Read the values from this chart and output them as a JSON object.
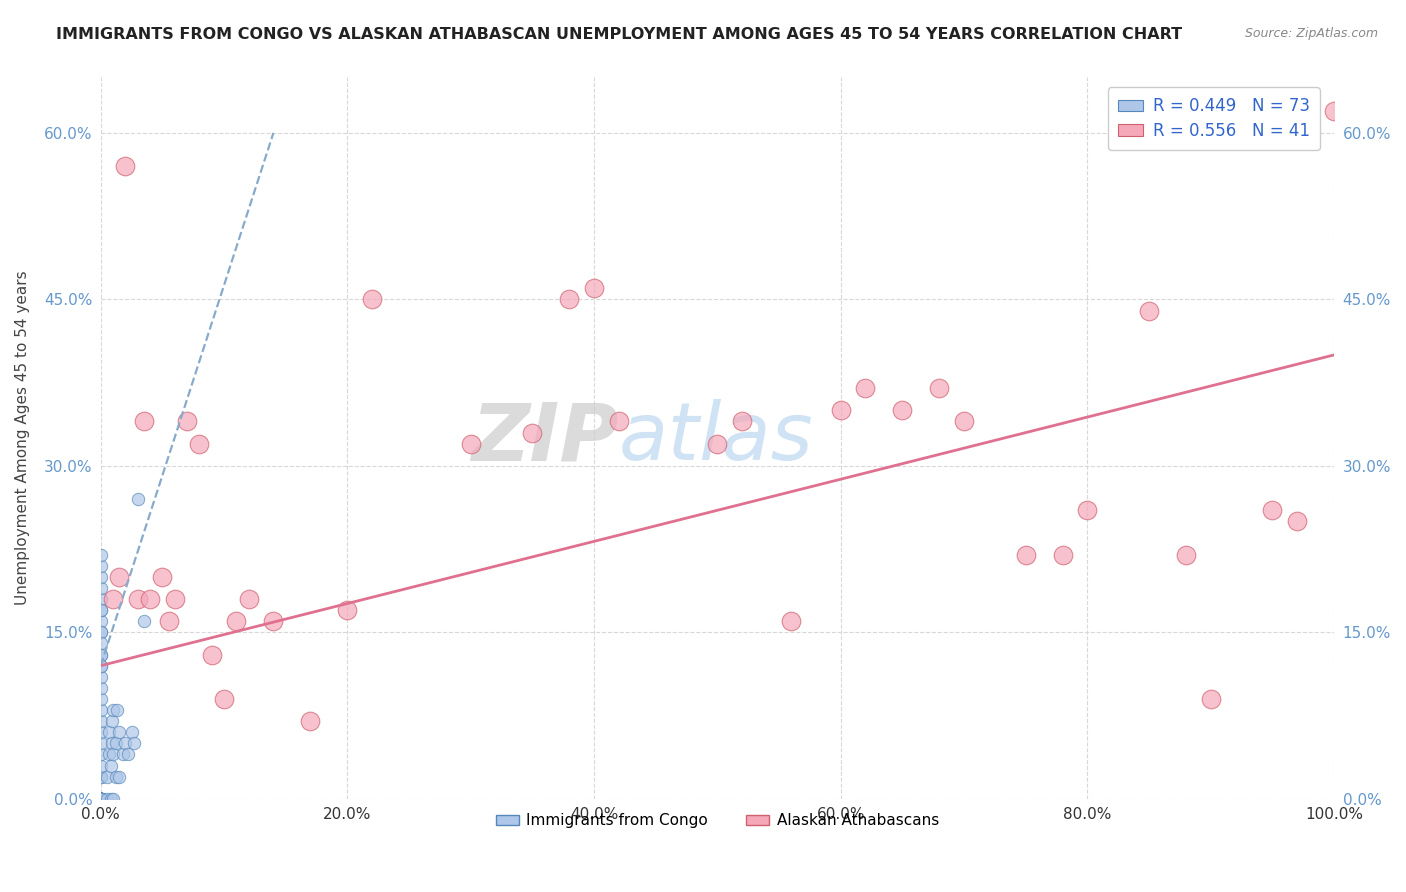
{
  "title": "IMMIGRANTS FROM CONGO VS ALASKAN ATHABASCAN UNEMPLOYMENT AMONG AGES 45 TO 54 YEARS CORRELATION CHART",
  "source": "Source: ZipAtlas.com",
  "ylabel": "Unemployment Among Ages 45 to 54 years",
  "xlim": [
    0.0,
    1.0
  ],
  "ylim": [
    0.0,
    0.65
  ],
  "xtick_labels": [
    "0.0%",
    "20.0%",
    "40.0%",
    "60.0%",
    "80.0%",
    "100.0%"
  ],
  "xtick_vals": [
    0.0,
    0.2,
    0.4,
    0.6,
    0.8,
    1.0
  ],
  "ytick_labels": [
    "0.0%",
    "15.0%",
    "30.0%",
    "45.0%",
    "60.0%"
  ],
  "ytick_vals": [
    0.0,
    0.15,
    0.3,
    0.45,
    0.6
  ],
  "legend_r_congo": "R = 0.449",
  "legend_n_congo": "N = 73",
  "legend_r_athabascan": "R = 0.556",
  "legend_n_athabascan": "N = 41",
  "congo_color": "#aec6e8",
  "congo_edge": "#5588bb",
  "athabascan_color": "#f4a8b8",
  "athabascan_edge": "#d06070",
  "congo_line_color": "#88aacc",
  "athabascan_line_color": "#e07090",
  "watermark_zip": "ZIP",
  "watermark_atlas": "atlas",
  "background_color": "#ffffff",
  "grid_color": "#d8d8d8",
  "congo_x": [
    0.0,
    0.0,
    0.0,
    0.0,
    0.0,
    0.0,
    0.0,
    0.0,
    0.0,
    0.0,
    0.0,
    0.0,
    0.0,
    0.0,
    0.0,
    0.0,
    0.0,
    0.0,
    0.0,
    0.0,
    0.0,
    0.0,
    0.0,
    0.0,
    0.0,
    0.0,
    0.0,
    0.0,
    0.0,
    0.0,
    0.0,
    0.0,
    0.0,
    0.0,
    0.0,
    0.0,
    0.0,
    0.0,
    0.0,
    0.0,
    0.0,
    0.0,
    0.0,
    0.0,
    0.0,
    0.0,
    0.0,
    0.0,
    0.0,
    0.0,
    0.005,
    0.005,
    0.007,
    0.007,
    0.008,
    0.008,
    0.009,
    0.009,
    0.01,
    0.01,
    0.01,
    0.012,
    0.012,
    0.013,
    0.015,
    0.015,
    0.018,
    0.02,
    0.022,
    0.025,
    0.027,
    0.03,
    0.035
  ],
  "congo_y": [
    0.0,
    0.0,
    0.0,
    0.0,
    0.0,
    0.0,
    0.0,
    0.0,
    0.0,
    0.0,
    0.0,
    0.0,
    0.0,
    0.0,
    0.0,
    0.0,
    0.0,
    0.0,
    0.0,
    0.0,
    0.0,
    0.0,
    0.0,
    0.0,
    0.02,
    0.02,
    0.03,
    0.04,
    0.05,
    0.06,
    0.07,
    0.08,
    0.09,
    0.1,
    0.11,
    0.12,
    0.13,
    0.15,
    0.16,
    0.17,
    0.18,
    0.19,
    0.2,
    0.21,
    0.22,
    0.17,
    0.15,
    0.14,
    0.13,
    0.12,
    0.0,
    0.02,
    0.04,
    0.06,
    0.0,
    0.03,
    0.05,
    0.07,
    0.0,
    0.04,
    0.08,
    0.02,
    0.05,
    0.08,
    0.02,
    0.06,
    0.04,
    0.05,
    0.04,
    0.06,
    0.05,
    0.27,
    0.16
  ],
  "athabascan_x": [
    0.01,
    0.015,
    0.02,
    0.03,
    0.035,
    0.04,
    0.05,
    0.055,
    0.06,
    0.07,
    0.08,
    0.09,
    0.1,
    0.11,
    0.12,
    0.14,
    0.17,
    0.2,
    0.22,
    0.3,
    0.35,
    0.38,
    0.4,
    0.42,
    0.5,
    0.52,
    0.56,
    0.6,
    0.62,
    0.65,
    0.68,
    0.7,
    0.75,
    0.78,
    0.8,
    0.85,
    0.88,
    0.9,
    0.95,
    0.97,
    1.0
  ],
  "athabascan_y": [
    0.18,
    0.2,
    0.57,
    0.18,
    0.34,
    0.18,
    0.2,
    0.16,
    0.18,
    0.34,
    0.32,
    0.13,
    0.09,
    0.16,
    0.18,
    0.16,
    0.07,
    0.17,
    0.45,
    0.32,
    0.33,
    0.45,
    0.46,
    0.34,
    0.32,
    0.34,
    0.16,
    0.35,
    0.37,
    0.35,
    0.37,
    0.34,
    0.22,
    0.22,
    0.26,
    0.44,
    0.22,
    0.09,
    0.26,
    0.25,
    0.62
  ],
  "congo_trendline_x": [
    0.0,
    0.14
  ],
  "congo_trendline_y": [
    0.12,
    0.6
  ],
  "athabascan_trendline_x": [
    0.0,
    1.0
  ],
  "athabascan_trendline_y": [
    0.12,
    0.4
  ]
}
